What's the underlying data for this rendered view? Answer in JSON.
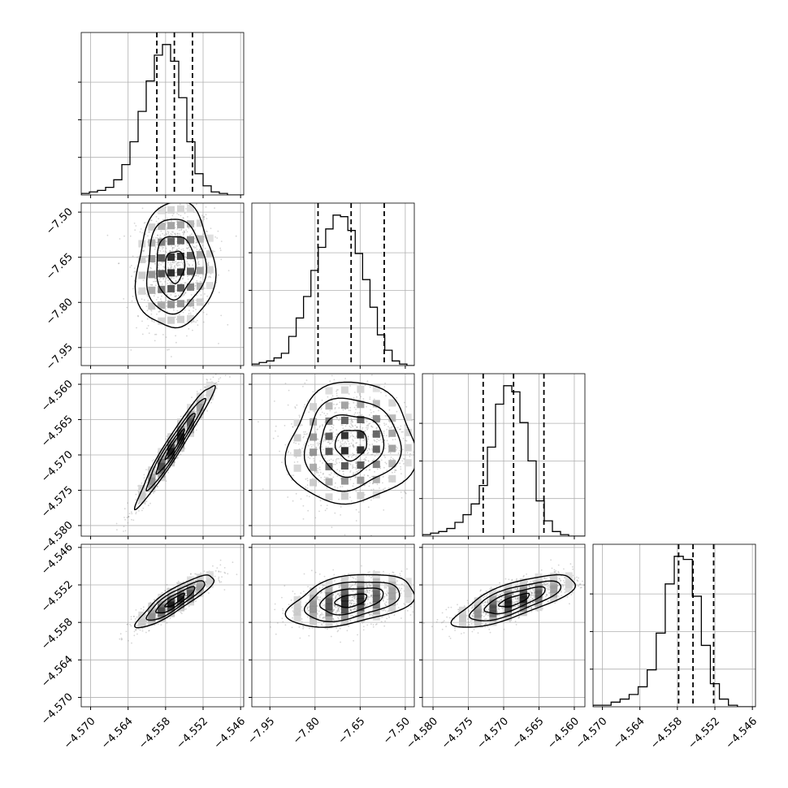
{
  "chart_data": {
    "type": "corner",
    "grid": true,
    "quantile_lines": [
      0.16,
      0.5,
      0.84
    ],
    "colors": {
      "mark": "#000000",
      "grid": "#b0b0b0",
      "scatter": "#888888",
      "background": "#ffffff"
    },
    "parameters": [
      {
        "mean": -4.5565,
        "sd": 0.0031,
        "range": [
          -4.5715,
          -4.5455
        ],
        "ticks": [
          -4.57,
          -4.564,
          -4.558,
          -4.552,
          -4.546
        ],
        "tick_labels": [
          "−4.570",
          "−4.564",
          "−4.558",
          "−4.552",
          "−4.546"
        ],
        "hist_counts": [
          1,
          2,
          3,
          5,
          10,
          20,
          35,
          55,
          75,
          92,
          99,
          88,
          64,
          35,
          14,
          6,
          2,
          1,
          0,
          0
        ],
        "quantiles": [
          -4.5594,
          -4.5566,
          -4.5537
        ]
      },
      {
        "mean": -7.68,
        "sd": 0.105,
        "range": [
          -8.01,
          -7.47
        ],
        "ticks": [
          -7.95,
          -7.8,
          -7.65,
          -7.5
        ],
        "tick_labels": [
          "−7.95",
          "−7.80",
          "−7.65",
          "−7.50"
        ],
        "hist_counts": [
          1,
          2,
          3,
          5,
          8,
          19,
          31,
          45,
          62,
          77,
          89,
          98,
          97,
          88,
          73,
          56,
          38,
          20,
          10,
          3,
          1,
          0
        ],
        "quantiles": [
          -7.79,
          -7.68,
          -7.57
        ]
      },
      {
        "mean": -4.5685,
        "sd": 0.0043,
        "range": [
          -4.5815,
          -4.5585
        ],
        "ticks": [
          -4.58,
          -4.575,
          -4.57,
          -4.565,
          -4.56
        ],
        "tick_labels": [
          "−4.580",
          "−4.575",
          "−4.570",
          "−4.565",
          "−4.560"
        ],
        "hist_counts": [
          1,
          2,
          3,
          5,
          9,
          14,
          21,
          33,
          58,
          86,
          98,
          94,
          74,
          49,
          23,
          10,
          3,
          1,
          0,
          0
        ],
        "quantiles": [
          -4.5729,
          -4.5686,
          -4.5643
        ]
      },
      {
        "mean": -4.5545,
        "sd": 0.0021,
        "range": [
          -4.5715,
          -4.5455
        ],
        "ticks": [
          -4.57,
          -4.564,
          -4.558,
          -4.552,
          -4.546
        ],
        "tick_labels": [
          "−4.570",
          "−4.564",
          "−4.558",
          "−4.552",
          "−4.546"
        ],
        "hist_counts": [
          1,
          1,
          3,
          5,
          8,
          13,
          24,
          48,
          80,
          98,
          96,
          72,
          40,
          15,
          5,
          1,
          0,
          0
        ],
        "quantiles": [
          -4.5578,
          -4.5555,
          -4.5522
        ]
      }
    ],
    "correlations": [
      [
        1,
        0,
        0,
        0
      ],
      [
        0.05,
        1,
        0,
        0
      ],
      [
        0.97,
        0.05,
        1,
        0
      ],
      [
        0.88,
        0.4,
        0.75,
        1
      ]
    ]
  }
}
